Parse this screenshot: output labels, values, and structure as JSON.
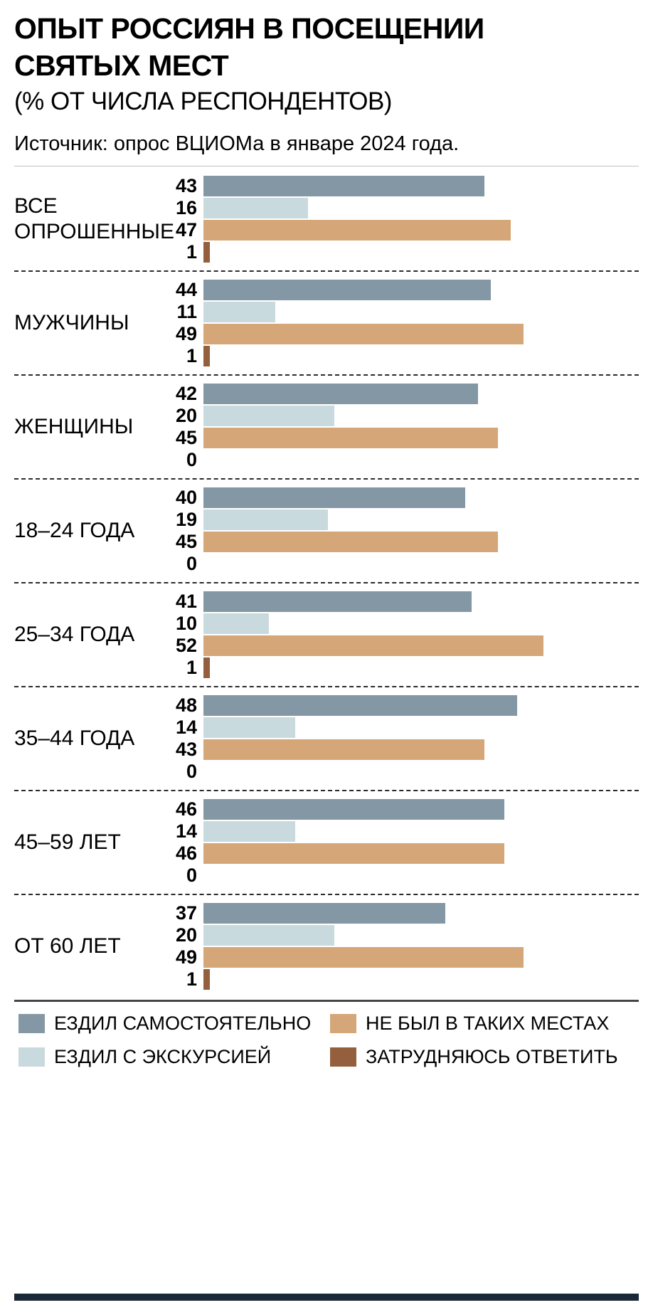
{
  "header": {
    "title": "ОПЫТ РОССИЯН В ПОСЕЩЕНИИ СВЯТЫХ МЕСТ",
    "subtitle": "(% ОТ ЧИСЛА РЕСПОНДЕНТОВ)",
    "source": "Источник: опрос ВЦИОМа в январе 2024 года."
  },
  "chart_data": {
    "type": "bar",
    "orientation": "horizontal",
    "title": "ОПЫТ РОССИЯН В ПОСЕЩЕНИИ СВЯТЫХ МЕСТ",
    "subtitle": "(% ОТ ЧИСЛА РЕСПОНДЕНТОВ)",
    "source": "Источник: опрос ВЦИОМа в январе 2024 года.",
    "unit": "%",
    "xlim": [
      0,
      52
    ],
    "grid": false,
    "legend_position": "bottom",
    "value_labels": "left-of-bar",
    "categories": [
      "ВСЕ ОПРОШЕННЫЕ",
      "МУЖЧИНЫ",
      "ЖЕНЩИНЫ",
      "18–24 ГОДА",
      "25–34 ГОДА",
      "35–44 ГОДА",
      "45–59 ЛЕТ",
      "ОТ 60 ЛЕТ"
    ],
    "series": [
      {
        "name": "ЕЗДИЛ САМОСТОЯТЕЛЬНО",
        "color": "#8397a4",
        "values": [
          43,
          44,
          42,
          40,
          41,
          48,
          46,
          37
        ]
      },
      {
        "name": "ЕЗДИЛ С ЭКСКУРСИЕЙ",
        "color": "#c9dade",
        "values": [
          16,
          11,
          20,
          19,
          10,
          14,
          14,
          20
        ]
      },
      {
        "name": "НЕ БЫЛ В ТАКИХ МЕСТАХ",
        "color": "#d5a678",
        "values": [
          47,
          49,
          45,
          45,
          52,
          43,
          46,
          49
        ]
      },
      {
        "name": "ЗАТРУДНЯЮСЬ ОТВЕТИТЬ",
        "color": "#935f3d",
        "values": [
          1,
          1,
          0,
          0,
          1,
          0,
          0,
          1
        ]
      }
    ]
  },
  "colors": {
    "series_1": "#8397a4",
    "series_2": "#c9dade",
    "series_3": "#d5a678",
    "series_4": "#935f3d",
    "footer_bar": "#1b2836",
    "separator_dashed": "#2b2b2b"
  }
}
